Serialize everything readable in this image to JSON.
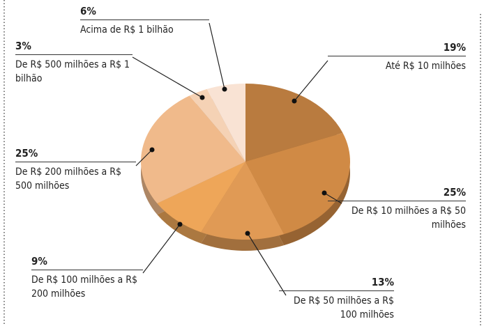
{
  "chart_data": {
    "type": "pie",
    "categories": [
      "Até R$ 10 milhões",
      "De R$ 10 milhões a R$ 50 milhões",
      "De R$ 50 milhões a R$ 100 milhões",
      "De R$ 100 milhões a R$ 200 milhões",
      "De R$ 200 milhões a R$ 500 milhões",
      "De R$ 500 milhões a R$ 1 bilhão",
      "Acima de R$ 1 bilhão"
    ],
    "values": [
      19,
      25,
      13,
      9,
      25,
      3,
      6
    ],
    "value_labels": [
      "19%",
      "25%",
      "13%",
      "9%",
      "25%",
      "3%",
      "6%"
    ],
    "colors": [
      "#b97b3f",
      "#d08a45",
      "#e09a55",
      "#eea659",
      "#f0ba8b",
      "#f5d2b5",
      "#f9e3d4"
    ]
  }
}
